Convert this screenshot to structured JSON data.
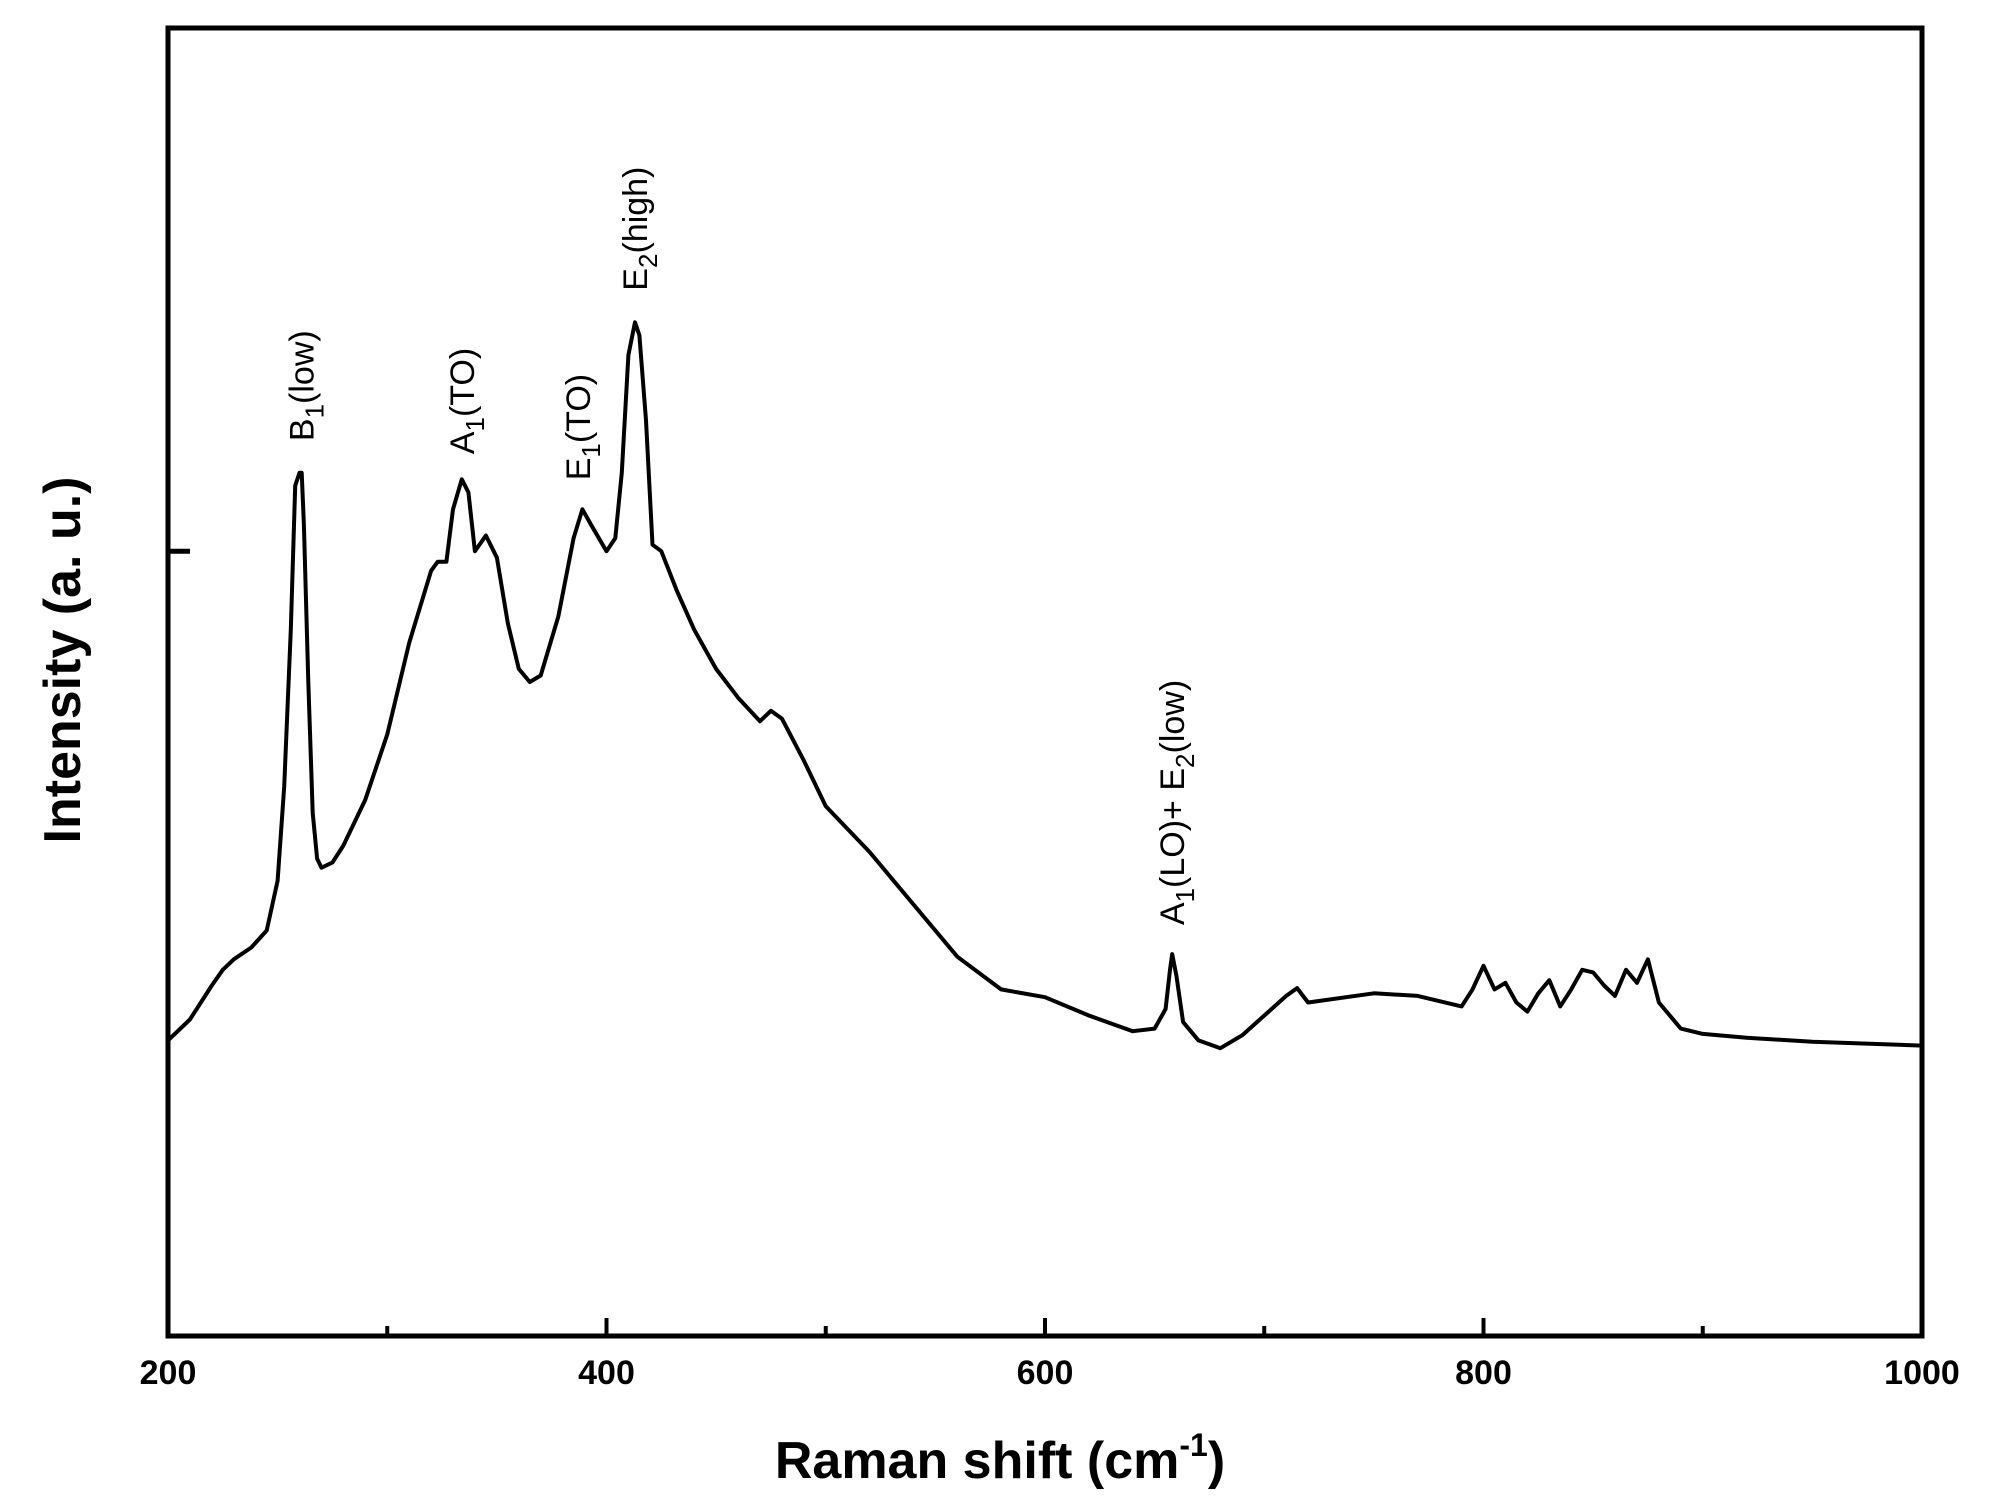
{
  "chart_data": {
    "type": "line",
    "xlabel": "Raman shift (cm",
    "xlabel_superscript": "-1",
    "xlabel_tail": ")",
    "ylabel": "Intensity (a. u.)",
    "xlim": [
      200,
      1000
    ],
    "ylim": [
      0,
      1
    ],
    "x_ticks": [
      200,
      400,
      600,
      800,
      1000
    ],
    "x_minor_ticks": [
      300,
      500,
      700,
      900
    ],
    "y_tick_positions": [
      0.6
    ],
    "grid": false,
    "line_color": "#000000",
    "annotations": [
      {
        "x": 261,
        "y": 0.6,
        "main": "B",
        "sub": "1",
        "tail": "(low)"
      },
      {
        "x": 334,
        "y": 0.6,
        "main": "A",
        "sub": "1",
        "tail": "(TO)"
      },
      {
        "x": 387,
        "y": 0.6,
        "main": "E",
        "sub": "1",
        "tail": "(TO)"
      },
      {
        "x": 413,
        "y": 0.6,
        "main": "E",
        "sub": "2",
        "tail": "(high)"
      },
      {
        "x": 658,
        "y": 0.6,
        "main": "A",
        "sub": "1",
        "tail": "(LO)+ E",
        "sub2": "2",
        "tail2": "(low)"
      }
    ],
    "series": [
      {
        "x": [
          200,
          210,
          220,
          225,
          230,
          238,
          245,
          250,
          253,
          256,
          258,
          260,
          261,
          262,
          264,
          266,
          268,
          270,
          275,
          280,
          290,
          300,
          310,
          320,
          323,
          327,
          330,
          334,
          337,
          340,
          345,
          350,
          355,
          360,
          365,
          370,
          378,
          385,
          389,
          393,
          400,
          404,
          407,
          410,
          413,
          415,
          418,
          421,
          425,
          432,
          440,
          450,
          460,
          470,
          475,
          480,
          490,
          500,
          520,
          540,
          560,
          580,
          600,
          620,
          640,
          650,
          655,
          657,
          658,
          660,
          663,
          670,
          680,
          690,
          700,
          710,
          715,
          720,
          750,
          770,
          790,
          795,
          800,
          805,
          810,
          815,
          820,
          825,
          830,
          835,
          840,
          845,
          850,
          855,
          860,
          865,
          870,
          875,
          880,
          890,
          900,
          920,
          950,
          1000
        ],
        "y": [
          0.226,
          0.242,
          0.268,
          0.28,
          0.288,
          0.297,
          0.31,
          0.348,
          0.42,
          0.54,
          0.65,
          0.66,
          0.66,
          0.62,
          0.5,
          0.4,
          0.365,
          0.358,
          0.362,
          0.375,
          0.41,
          0.46,
          0.53,
          0.585,
          0.592,
          0.592,
          0.632,
          0.655,
          0.645,
          0.6,
          0.612,
          0.595,
          0.545,
          0.51,
          0.5,
          0.505,
          0.55,
          0.61,
          0.632,
          0.62,
          0.6,
          0.61,
          0.66,
          0.75,
          0.775,
          0.765,
          0.7,
          0.605,
          0.6,
          0.57,
          0.54,
          0.51,
          0.488,
          0.47,
          0.478,
          0.472,
          0.44,
          0.405,
          0.37,
          0.33,
          0.29,
          0.265,
          0.259,
          0.245,
          0.233,
          0.235,
          0.25,
          0.28,
          0.292,
          0.275,
          0.24,
          0.226,
          0.22,
          0.23,
          0.245,
          0.26,
          0.266,
          0.255,
          0.262,
          0.26,
          0.252,
          0.265,
          0.283,
          0.265,
          0.27,
          0.255,
          0.248,
          0.262,
          0.272,
          0.252,
          0.265,
          0.28,
          0.278,
          0.268,
          0.26,
          0.28,
          0.27,
          0.288,
          0.255,
          0.235,
          0.231,
          0.228,
          0.225,
          0.222
        ]
      }
    ]
  }
}
